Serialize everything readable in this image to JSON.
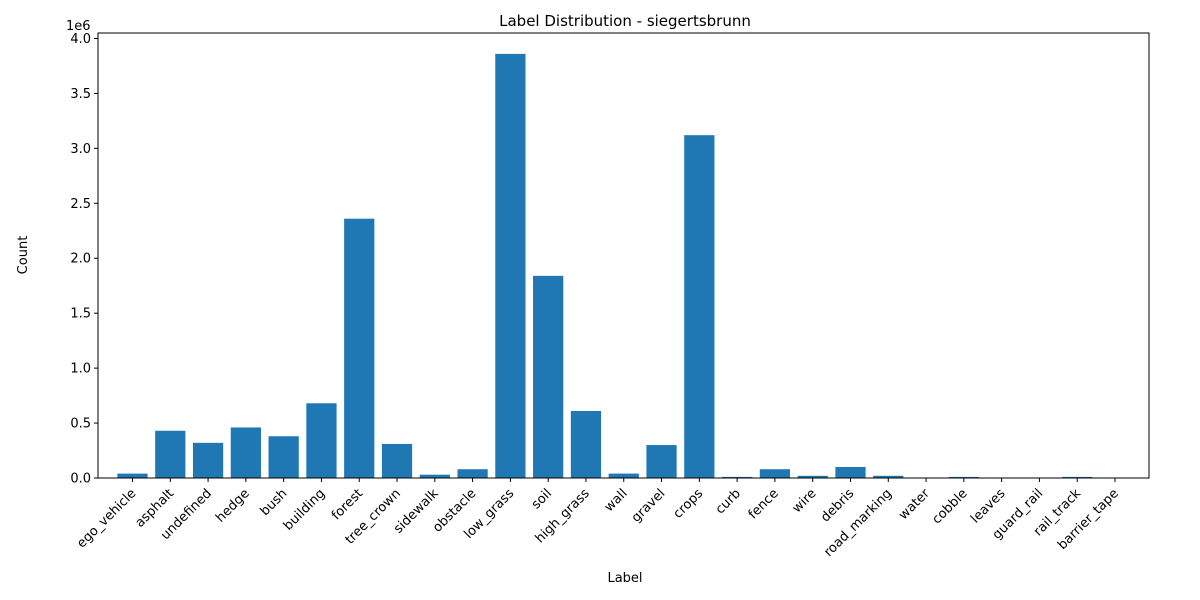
{
  "chart_data": {
    "type": "bar",
    "title": "Label Distribution - siegertsbrunn",
    "xlabel": "Label",
    "ylabel": "Count",
    "y_multiplier_label": "1e6",
    "ylim": [
      0,
      4.05
    ],
    "yticks": [
      "0.0",
      "0.5",
      "1.0",
      "1.5",
      "2.0",
      "2.5",
      "3.0",
      "3.5",
      "4.0"
    ],
    "bar_color": "#1f77b4",
    "categories": [
      "ego_vehicle",
      "asphalt",
      "undefined",
      "hedge",
      "bush",
      "building",
      "forest",
      "tree_crown",
      "sidewalk",
      "obstacle",
      "low_grass",
      "soil",
      "high_grass",
      "wall",
      "gravel",
      "crops",
      "curb",
      "fence",
      "wire",
      "debris",
      "road_marking",
      "water",
      "cobble",
      "leaves",
      "guard_rail",
      "rail_track",
      "barrier_tape"
    ],
    "values": [
      0.04,
      0.43,
      0.32,
      0.46,
      0.38,
      0.68,
      2.36,
      0.31,
      0.03,
      0.08,
      3.86,
      1.84,
      0.61,
      0.04,
      0.3,
      3.12,
      0.01,
      0.08,
      0.02,
      0.1,
      0.02,
      0.003,
      0.01,
      0.003,
      0.003,
      0.01,
      0.002
    ]
  }
}
